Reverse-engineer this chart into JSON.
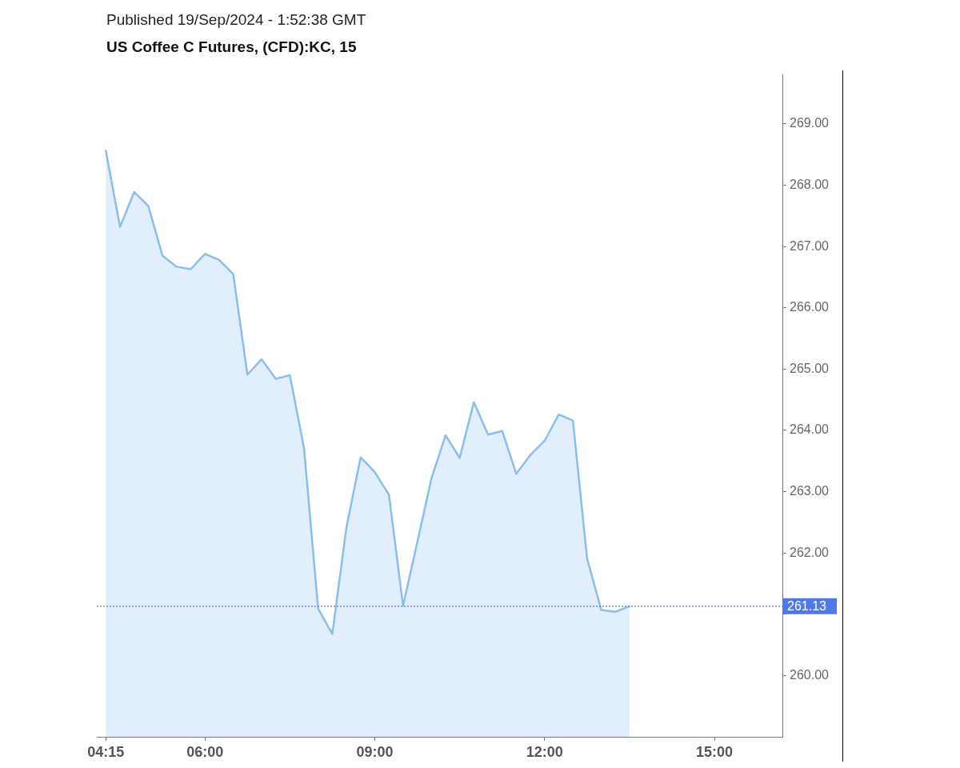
{
  "chart_data": {
    "type": "area",
    "title": "US Coffee C Futures, (CFD):KC, 15",
    "annotations": [
      "Published 19/Sep/2024 - 1:52:38 GMT"
    ],
    "x": [
      4.25,
      4.5,
      4.75,
      5,
      5.25,
      5.5,
      5.75,
      6,
      6.25,
      6.5,
      6.75,
      7,
      7.25,
      7.5,
      7.75,
      8,
      8.25,
      8.5,
      8.75,
      9,
      9.25,
      9.5,
      9.75,
      10,
      10.25,
      10.5,
      10.75,
      11,
      11.25,
      11.5,
      11.75,
      12,
      12.25,
      12.5,
      12.75,
      13,
      13.25,
      13.5
    ],
    "values": [
      268.56,
      267.32,
      267.89,
      267.66,
      266.85,
      266.67,
      266.63,
      266.88,
      266.78,
      266.55,
      264.91,
      265.16,
      264.84,
      264.9,
      263.71,
      261.09,
      260.68,
      262.42,
      263.56,
      263.32,
      262.95,
      261.14,
      262.17,
      263.21,
      263.92,
      263.55,
      264.46,
      263.93,
      263.99,
      263.29,
      263.6,
      263.83,
      264.26,
      264.16,
      261.91,
      261.07,
      261.04,
      261.13
    ],
    "color": "#8bbdf0",
    "xlim": [
      4.09,
      16.2
    ],
    "xticks": [
      {
        "value": 4.25,
        "label": "04:15"
      },
      {
        "value": 6,
        "label": "06:00"
      },
      {
        "value": 9,
        "label": "09:00"
      },
      {
        "value": 12,
        "label": "12:00"
      },
      {
        "value": 15,
        "label": "15:00"
      }
    ],
    "ylim": [
      259.0,
      269.8
    ],
    "yticks": [
      {
        "value": 260,
        "label": "260.00"
      },
      {
        "value": 261,
        "label": null
      },
      {
        "value": 262,
        "label": "262.00"
      },
      {
        "value": 263,
        "label": "263.00"
      },
      {
        "value": 264,
        "label": "264.00"
      },
      {
        "value": 265,
        "label": "265.00"
      },
      {
        "value": 266,
        "label": "266.00"
      },
      {
        "value": 267,
        "label": "267.00"
      },
      {
        "value": 268,
        "label": "268.00"
      },
      {
        "value": 269,
        "label": "269.00"
      }
    ],
    "ref_lines": [
      {
        "axis": "y",
        "value": 261.13,
        "label": "261.13",
        "color": "#4e79e6",
        "line_style": "dotted"
      }
    ],
    "grid": false,
    "legend": false,
    "marker": "none",
    "line_style": "solid"
  }
}
